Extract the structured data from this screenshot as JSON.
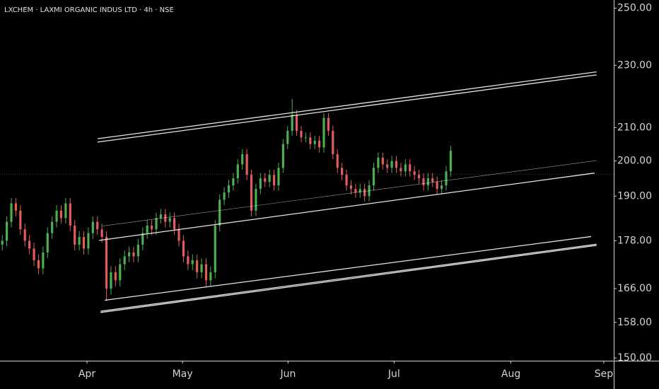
{
  "chart_data": {
    "type": "candlestick",
    "title": "LXCHEM · LAXMI ORGANIC INDUS LTD · 4h · NSE",
    "log_scale": true,
    "up_color": "#4caf50",
    "down_color": "#e35d5d",
    "line_color": "#ffffff",
    "xlim": [
      0,
      271
    ],
    "xticks": [
      {
        "value": 38.4,
        "label": "Apr"
      },
      {
        "value": 80.6,
        "label": "May"
      },
      {
        "value": 127.2,
        "label": "Jun"
      },
      {
        "value": 174,
        "label": "Jul"
      },
      {
        "value": 225.6,
        "label": "Aug"
      },
      {
        "value": 266.6,
        "label": "Sep"
      }
    ],
    "ylim": [
      149.4,
      253
    ],
    "yticks": [
      {
        "value": 250,
        "label": "250.00"
      },
      {
        "value": 230,
        "label": "230.00"
      },
      {
        "value": 210,
        "label": "210.00"
      },
      {
        "value": 200,
        "label": "200.00"
      },
      {
        "value": 190,
        "label": "190.00"
      },
      {
        "value": 178,
        "label": "178.00"
      },
      {
        "value": 166,
        "label": "166.00"
      },
      {
        "value": 158,
        "label": "158.00"
      },
      {
        "value": 150,
        "label": "150.00"
      }
    ],
    "price_line": 196.1,
    "x": [
      1,
      3,
      5,
      7,
      9,
      11,
      13,
      15,
      17,
      19,
      21,
      23,
      25,
      27,
      29,
      31,
      33,
      35,
      37,
      39,
      41,
      43,
      45,
      47,
      49,
      51,
      53,
      55,
      57,
      59,
      61,
      63,
      65,
      67,
      69,
      71,
      73,
      75,
      77,
      79,
      81,
      83,
      85,
      87,
      89,
      91,
      93,
      95,
      97,
      99,
      101,
      103,
      105,
      107,
      109,
      111,
      113,
      115,
      117,
      119,
      121,
      123,
      125,
      127,
      129,
      131,
      133,
      135,
      137,
      139,
      141,
      143,
      145,
      147,
      149,
      151,
      153,
      155,
      157,
      159,
      161,
      163,
      165,
      167,
      169,
      171,
      173,
      175,
      177,
      179,
      181,
      183,
      185,
      187,
      189,
      191,
      193,
      195,
      197,
      199
    ],
    "open": [
      177,
      178,
      183,
      188,
      186,
      181,
      178,
      176,
      173,
      171,
      175,
      180,
      183,
      186,
      184,
      188,
      182,
      177,
      179,
      176,
      180,
      183,
      181,
      179,
      166,
      170,
      168,
      172,
      174,
      175,
      174,
      177,
      180,
      182,
      181,
      184,
      185,
      183,
      184,
      181,
      178,
      174,
      172,
      173,
      170,
      172,
      168,
      170,
      182,
      189,
      191,
      193,
      195,
      199,
      202,
      196,
      186,
      192,
      195,
      194,
      196,
      193,
      198,
      205,
      209,
      214,
      209,
      207,
      207,
      205,
      206,
      204,
      213,
      209,
      202,
      198,
      196,
      193,
      192,
      191,
      192,
      190,
      193,
      198,
      201,
      199,
      198,
      200,
      198,
      197,
      199,
      197,
      196,
      195,
      193,
      195,
      194,
      192,
      193,
      197
    ],
    "high": [
      179.5,
      184.5,
      189.5,
      189.5,
      187.5,
      182.5,
      179.5,
      177.5,
      174.5,
      176.5,
      181.5,
      184.5,
      187.5,
      187.5,
      189.5,
      189.5,
      183.5,
      180.5,
      180.5,
      181.5,
      184.5,
      184.5,
      182.5,
      180.5,
      171.5,
      171.5,
      173.5,
      175.5,
      176.5,
      176.5,
      178.5,
      181.5,
      183.5,
      183.5,
      185.5,
      186.5,
      186.5,
      185.5,
      185.5,
      182.5,
      179.5,
      175.5,
      174.5,
      174.5,
      173.5,
      173.5,
      171.5,
      183.5,
      190.5,
      192.5,
      194.5,
      196.5,
      200.5,
      203.5,
      203.5,
      197.5,
      193.5,
      196.5,
      196.5,
      197.5,
      197.5,
      199.5,
      206.5,
      210.5,
      219,
      215.5,
      210.5,
      208.5,
      208.5,
      207.5,
      207.5,
      214.5,
      214.5,
      210.5,
      203.5,
      199.5,
      197.5,
      194.5,
      193.5,
      193.5,
      193.5,
      194.5,
      199.5,
      202.5,
      202.5,
      200.5,
      201.5,
      201.5,
      199.5,
      200.5,
      200.5,
      198.5,
      197.5,
      196.5,
      196.5,
      196.5,
      195.5,
      194.5,
      198.5,
      204.5
    ],
    "low": [
      175.5,
      176.5,
      181.5,
      184.5,
      179.5,
      176.5,
      174.5,
      171.5,
      169.5,
      169.5,
      173.5,
      178.5,
      181.5,
      182.5,
      182.5,
      180.5,
      175.5,
      175.5,
      174.5,
      174.5,
      178.5,
      179.5,
      177.5,
      163,
      164.5,
      166.5,
      166.5,
      170.5,
      172.5,
      172.5,
      172.5,
      175.5,
      178.5,
      179.5,
      179.5,
      182.5,
      181.5,
      181.5,
      179.5,
      176.5,
      172.5,
      170.5,
      170.5,
      168.5,
      168.5,
      166.5,
      166.5,
      168.5,
      180.5,
      187.5,
      189.5,
      191.5,
      193.5,
      197.5,
      194.5,
      184.5,
      184.5,
      190.5,
      192.5,
      192.5,
      191.5,
      191.5,
      196.5,
      203.5,
      207.5,
      207.5,
      205.5,
      205.5,
      203.5,
      203.5,
      202.5,
      202.5,
      207.5,
      200.5,
      196.5,
      194.5,
      191.5,
      190.5,
      189.5,
      189.5,
      188.5,
      188.5,
      191.5,
      196.5,
      197.5,
      196.5,
      196.5,
      196.5,
      195.5,
      195.5,
      195.5,
      194.5,
      193.5,
      191.5,
      191.5,
      192.5,
      190.5,
      190.5,
      191.5,
      195.5
    ],
    "close": [
      178,
      183,
      188,
      186,
      181,
      178,
      176,
      173,
      171,
      175,
      180,
      183,
      186,
      184,
      188,
      182,
      177,
      179,
      176,
      180,
      183,
      181,
      179,
      166,
      170,
      168,
      172,
      174,
      175,
      174,
      177,
      180,
      182,
      181,
      184,
      185,
      183,
      184,
      181,
      178,
      174,
      172,
      173,
      170,
      172,
      168,
      170,
      182,
      189,
      191,
      193,
      195,
      199,
      202,
      196,
      186,
      192,
      195,
      194,
      196,
      193,
      198,
      205,
      209,
      214,
      209,
      207,
      207,
      205,
      206,
      204,
      213,
      209,
      202,
      198,
      196,
      193,
      192,
      191,
      192,
      190,
      193,
      198,
      201,
      199,
      198,
      200,
      198,
      197,
      199,
      197,
      196,
      195,
      193,
      195,
      194,
      192,
      193,
      197,
      203
    ],
    "trendlines": [
      {
        "x": [
          43.1,
          263.4
        ],
        "y": [
          205.6,
          226.8
        ]
      },
      {
        "x": [
          43.1,
          263.4
        ],
        "y": [
          206.6,
          227.8
        ]
      },
      {
        "x": [
          43.75,
          262.5
        ],
        "y": [
          178.1,
          196.5
        ]
      },
      {
        "x": [
          45.3,
          263.4
        ],
        "y": [
          181.9,
          200.1
        ]
      },
      {
        "x": [
          46.25,
          261
        ],
        "y": [
          163.2,
          179.1
        ]
      },
      {
        "x": [
          44.4,
          263.4
        ],
        "y": [
          160.6,
          177.1
        ]
      },
      {
        "x": [
          44.4,
          263.4
        ],
        "y": [
          160.3,
          176.8
        ]
      }
    ]
  }
}
